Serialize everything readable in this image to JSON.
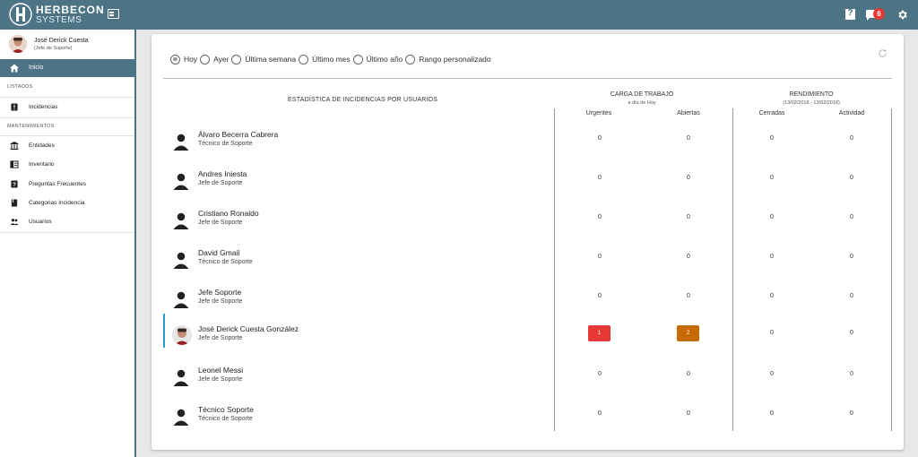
{
  "brand": {
    "name_line1": "HERBECON",
    "name_line2": "SYSTEMS"
  },
  "topbar": {
    "help_glyph": "?",
    "messages_badge": "6",
    "colors": {
      "bar": "#4c7484",
      "badge": "#e53935"
    }
  },
  "sidebar": {
    "user": {
      "name": "José Derick Cuesta",
      "role": "(Jefe de Soporte)"
    },
    "home": {
      "label": "Inicio"
    },
    "sections": [
      {
        "title": "LISTADOS",
        "items": [
          {
            "label": "Incidencias",
            "icon": "incidents-icon"
          }
        ]
      },
      {
        "title": "MANTENIMIENTOS",
        "items": [
          {
            "label": "Entidades",
            "icon": "bank-icon"
          },
          {
            "label": "Inventario",
            "icon": "inventory-icon"
          },
          {
            "label": "Preguntas Frecuentes",
            "icon": "help-icon"
          },
          {
            "label": "Categorias Incidencia",
            "icon": "book-icon"
          },
          {
            "label": "Usuarios",
            "icon": "users-icon"
          }
        ]
      }
    ]
  },
  "filters": {
    "options": [
      "Hoy",
      "Ayer",
      "Última semana",
      "Último mes",
      "Último año",
      "Rango personalizado"
    ],
    "selected": "Hoy"
  },
  "table": {
    "main_header": "ESTADÍSTICA DE INCIDENCIAS POR USUARIOS",
    "workload": {
      "title": "CARGA DE TRABAJO",
      "subtitle": "a día de Hoy",
      "columns": [
        "Urgentes",
        "Abiertas"
      ]
    },
    "performance": {
      "title": "RENDIMIENTO",
      "subtitle": "(13/02/2018 - 13/02/2018)",
      "columns": [
        "Cerradas",
        "Actividad"
      ]
    },
    "rows": [
      {
        "name": "Álvaro Becerra Cabrera",
        "role": "Técnico de Soporte",
        "urgentes": "0",
        "abiertas": "0",
        "cerradas": "0",
        "actividad": "0"
      },
      {
        "name": "Andres Iniesta",
        "role": "Jefe de Soporte",
        "urgentes": "0",
        "abiertas": "0",
        "cerradas": "0",
        "actividad": "0"
      },
      {
        "name": "Cristiano Ronaldo",
        "role": "Jefe de Soporte",
        "urgentes": "0",
        "abiertas": "0",
        "cerradas": "0",
        "actividad": "0"
      },
      {
        "name": "David Gmail",
        "role": "Técnico de Soporte",
        "urgentes": "0",
        "abiertas": "0",
        "cerradas": "0",
        "actividad": "0"
      },
      {
        "name": "Jefe Soporte",
        "role": "Jefe de Soporte",
        "urgentes": "0",
        "abiertas": "0",
        "cerradas": "0",
        "actividad": "0"
      },
      {
        "name": "José Derick Cuesta González",
        "role": "Jefe de Soporte",
        "urgentes": "1",
        "abiertas": "2",
        "cerradas": "0",
        "actividad": "0",
        "active": true
      },
      {
        "name": "Leonel Messi",
        "role": "Jefe de Soporte",
        "urgentes": "0",
        "abiertas": "0",
        "cerradas": "0",
        "actividad": "0"
      },
      {
        "name": "Técnico Soporte",
        "role": "Técnico de Soporte",
        "urgentes": "0",
        "abiertas": "0",
        "cerradas": "0",
        "actividad": "0"
      }
    ],
    "colors": {
      "urgent_chip": "#e53935",
      "open_chip": "#c56a05",
      "active_marker": "#2c9bd6"
    }
  }
}
